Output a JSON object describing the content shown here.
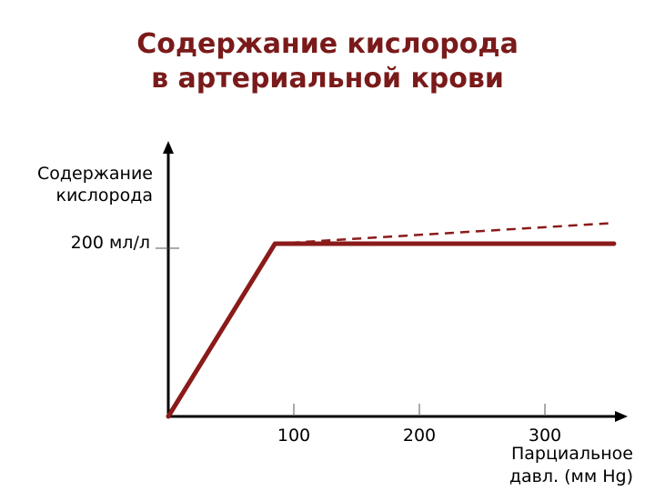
{
  "title_lines": [
    "Содержание кислорода",
    "в артериальной крови"
  ],
  "chart_data": {
    "type": "line",
    "title": "Содержание кислорода в артериальной крови",
    "ylabel_lines": [
      "Содержание",
      "кислорода"
    ],
    "xlabel_lines": [
      "Парциальное",
      "давл. (мм Hg)"
    ],
    "x_ticks": [
      "100",
      "200",
      "300"
    ],
    "x_tick_values": [
      100,
      200,
      300
    ],
    "y_ticks": [
      "200 мл/л"
    ],
    "y_tick_values": [
      200
    ],
    "xlim": [
      0,
      365
    ],
    "ylim": [
      0,
      295
    ],
    "grid": false,
    "series": [
      {
        "style": "solid",
        "color": "#8b1a1a",
        "x": [
          0,
          85,
          355
        ],
        "y": [
          0,
          200,
          200
        ]
      },
      {
        "style": "dashed",
        "color": "#8b1a1a",
        "x": [
          85,
          355
        ],
        "y": [
          200,
          224
        ]
      }
    ]
  }
}
